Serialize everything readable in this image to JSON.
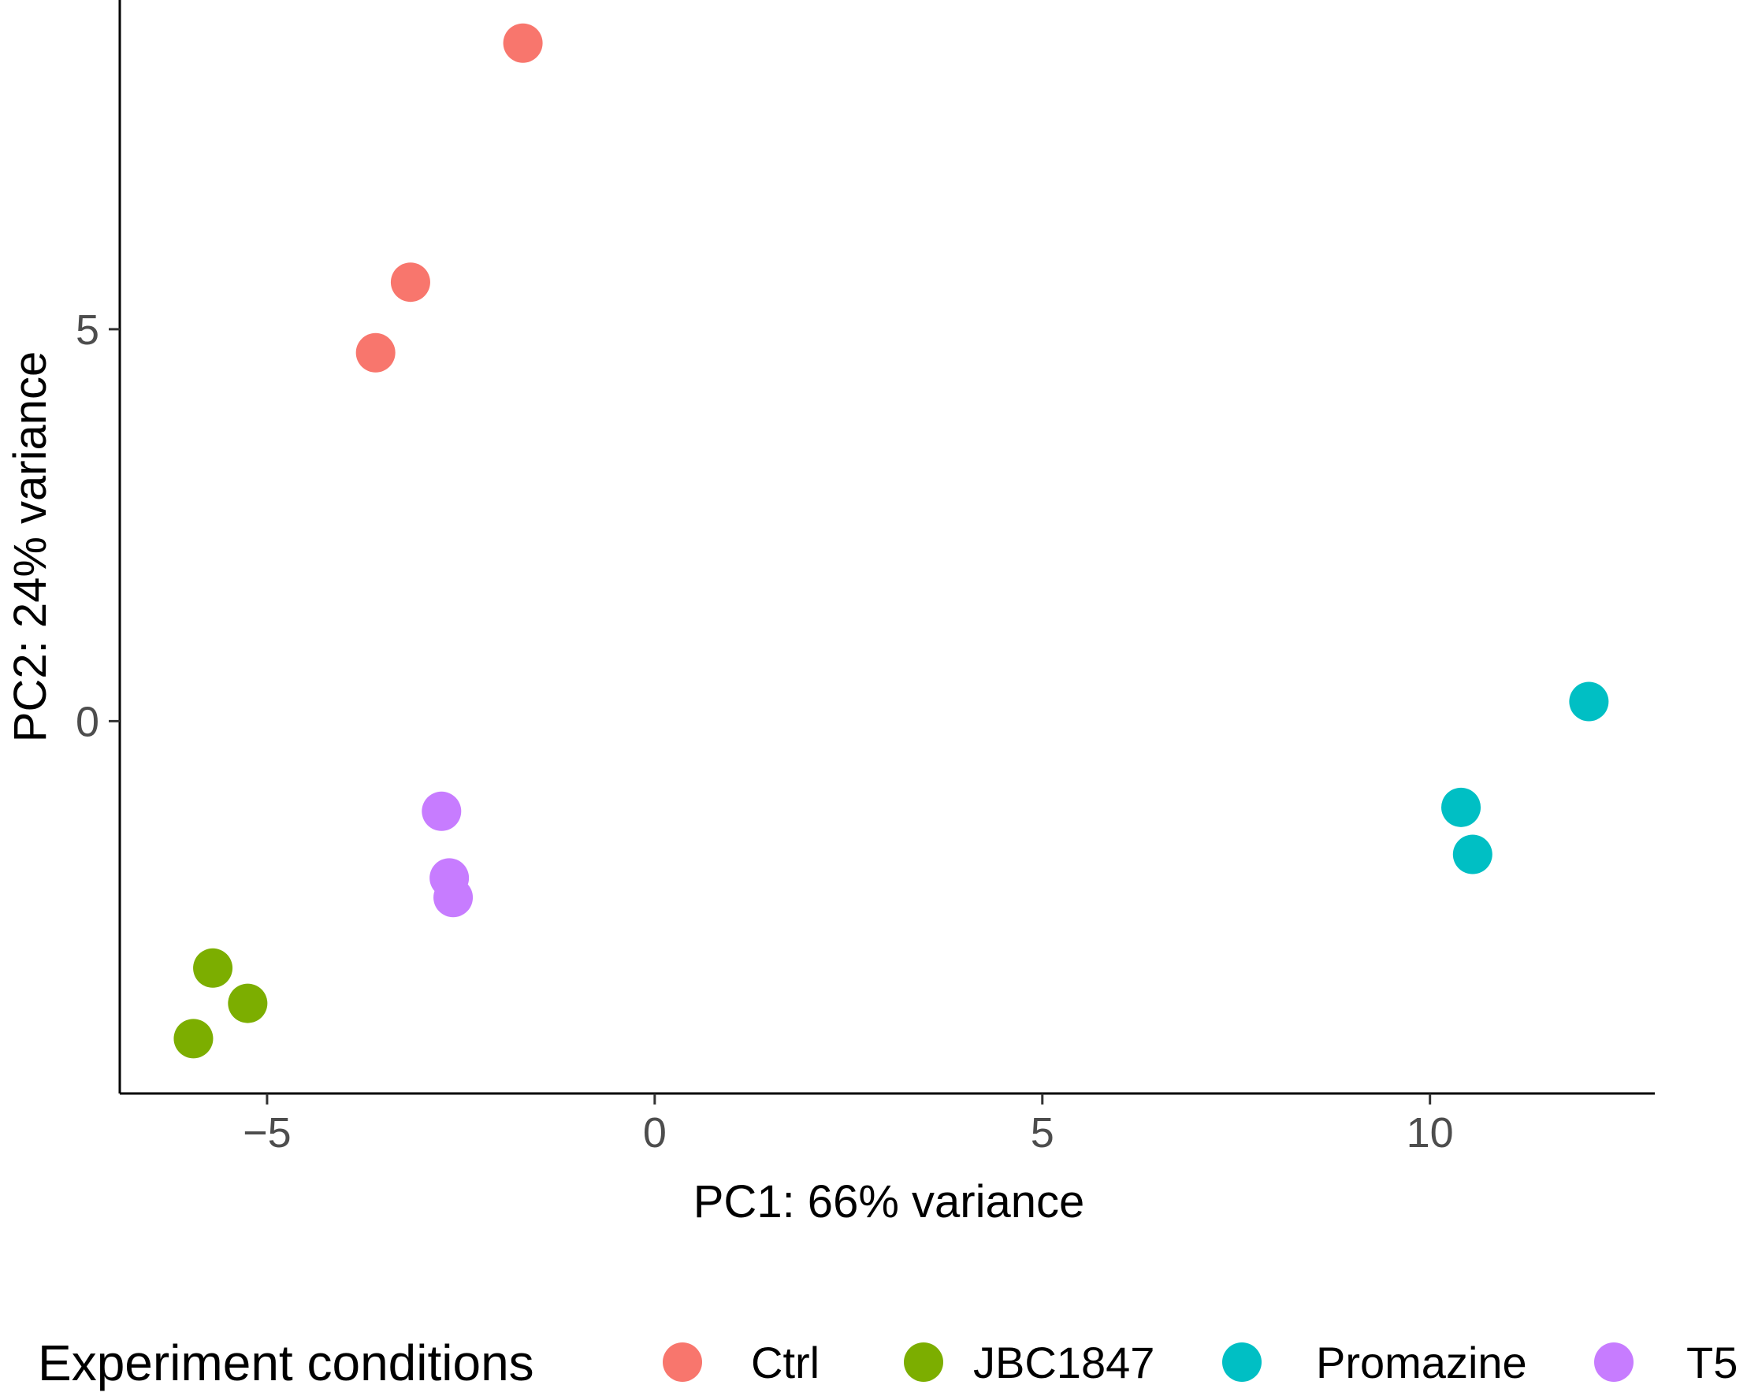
{
  "chart_data": {
    "type": "scatter",
    "xlabel": "PC1: 66% variance",
    "ylabel": "PC2: 24% variance",
    "xlim": [
      -6.9,
      12.9
    ],
    "ylim": [
      -4.75,
      9.2
    ],
    "x_ticks": [
      -5,
      0,
      5,
      10
    ],
    "y_ticks": [
      0,
      5
    ],
    "x_tick_labels": [
      "−5",
      "0",
      "5",
      "10"
    ],
    "y_tick_labels": [
      "0",
      "5"
    ],
    "legend": {
      "title": "Experiment conditions",
      "placement": "bottom"
    },
    "series": [
      {
        "name": "Ctrl",
        "color": "#F8766D",
        "points": [
          {
            "x": -1.7,
            "y": 8.65
          },
          {
            "x": -3.15,
            "y": 5.6
          },
          {
            "x": -3.6,
            "y": 4.7
          }
        ]
      },
      {
        "name": "JBC1847",
        "color": "#7CAE00",
        "points": [
          {
            "x": -5.7,
            "y": -3.15
          },
          {
            "x": -5.25,
            "y": -3.6
          },
          {
            "x": -5.95,
            "y": -4.05
          }
        ]
      },
      {
        "name": "Promazine",
        "color": "#00BFC4",
        "points": [
          {
            "x": 12.05,
            "y": 0.25
          },
          {
            "x": 10.4,
            "y": -1.1
          },
          {
            "x": 10.55,
            "y": -1.7
          }
        ]
      },
      {
        "name": "T5",
        "color": "#C77CFF",
        "points": [
          {
            "x": -2.75,
            "y": -1.15
          },
          {
            "x": -2.65,
            "y": -2.0
          },
          {
            "x": -2.6,
            "y": -2.25
          }
        ]
      }
    ]
  }
}
